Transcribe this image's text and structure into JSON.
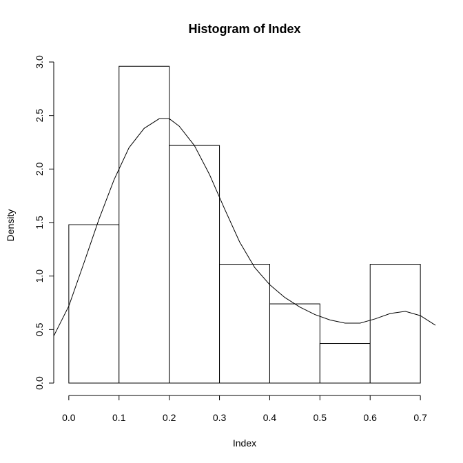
{
  "chart_data": {
    "type": "bar",
    "title": "Histogram of Index",
    "xlabel": "Index",
    "ylabel": "Density",
    "xlim": [
      -0.03,
      0.73
    ],
    "ylim": [
      0,
      3.0
    ],
    "x_ticks": [
      "0.0",
      "0.1",
      "0.2",
      "0.3",
      "0.4",
      "0.5",
      "0.6",
      "0.7"
    ],
    "y_ticks": [
      "0.0",
      "0.5",
      "1.0",
      "1.5",
      "2.0",
      "2.5",
      "3.0"
    ],
    "bins": [
      {
        "from": 0.0,
        "to": 0.1,
        "density": 1.48
      },
      {
        "from": 0.1,
        "to": 0.2,
        "density": 2.96
      },
      {
        "from": 0.2,
        "to": 0.3,
        "density": 2.22
      },
      {
        "from": 0.3,
        "to": 0.4,
        "density": 1.11
      },
      {
        "from": 0.4,
        "to": 0.5,
        "density": 0.74
      },
      {
        "from": 0.5,
        "to": 0.6,
        "density": 0.37
      },
      {
        "from": 0.6,
        "to": 0.7,
        "density": 1.11
      }
    ],
    "density_curve": {
      "x": [
        -0.03,
        0.0,
        0.03,
        0.06,
        0.09,
        0.12,
        0.15,
        0.18,
        0.2,
        0.22,
        0.25,
        0.28,
        0.31,
        0.34,
        0.37,
        0.4,
        0.43,
        0.46,
        0.49,
        0.52,
        0.55,
        0.58,
        0.61,
        0.64,
        0.67,
        0.7,
        0.73
      ],
      "y": [
        0.44,
        0.72,
        1.12,
        1.53,
        1.9,
        2.2,
        2.38,
        2.47,
        2.47,
        2.4,
        2.22,
        1.95,
        1.63,
        1.32,
        1.08,
        0.92,
        0.8,
        0.71,
        0.64,
        0.59,
        0.56,
        0.56,
        0.6,
        0.65,
        0.67,
        0.63,
        0.54
      ]
    },
    "grid": false,
    "legend": "none"
  }
}
